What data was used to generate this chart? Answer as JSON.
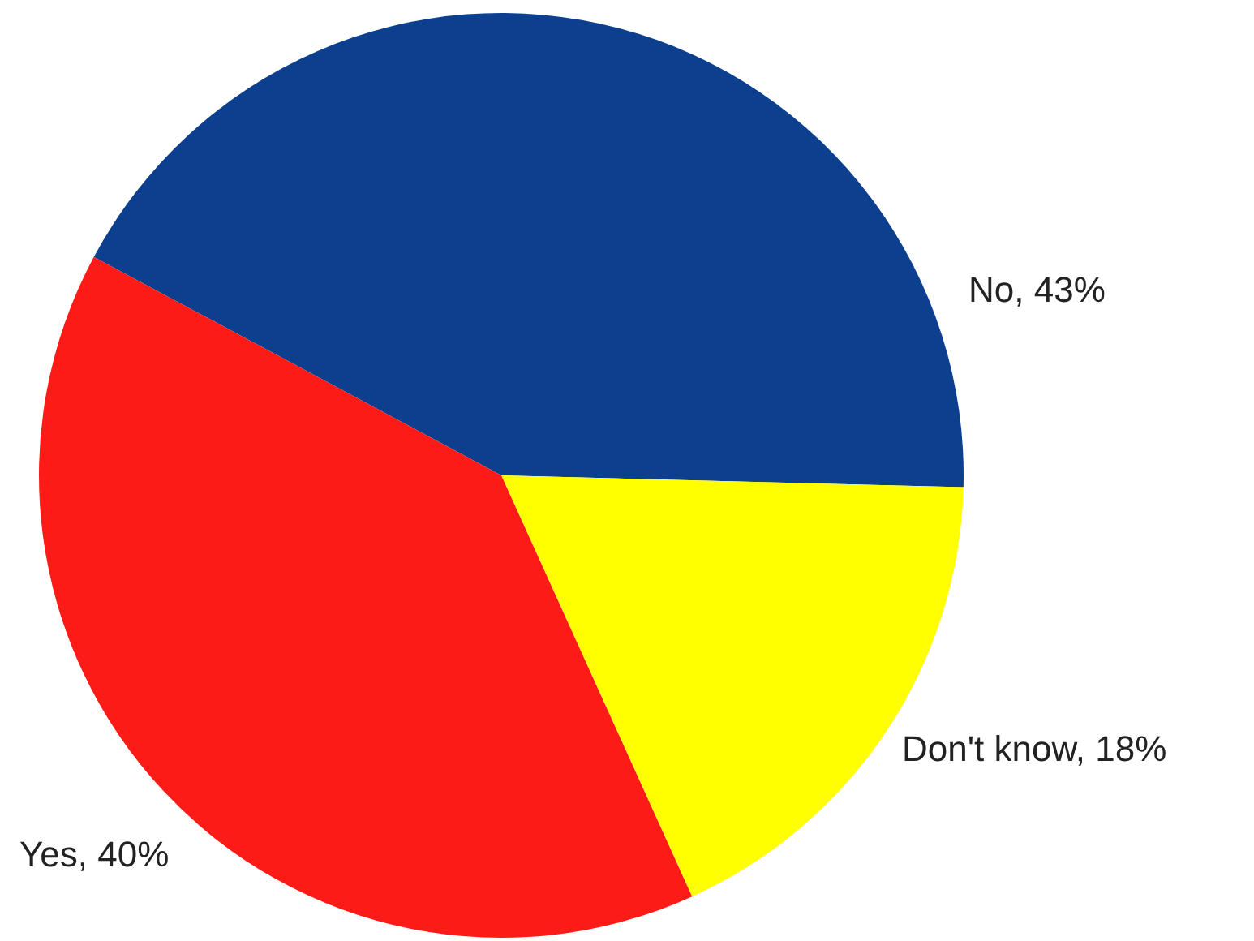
{
  "chart_data": {
    "type": "pie",
    "categories": [
      "No",
      "Don't know",
      "Yes"
    ],
    "values": [
      43,
      18,
      40
    ],
    "value_labels": [
      "43%",
      "18%",
      "40%"
    ],
    "colors": [
      "#0d3f8f",
      "#ffff00",
      "#fc1b16"
    ]
  }
}
